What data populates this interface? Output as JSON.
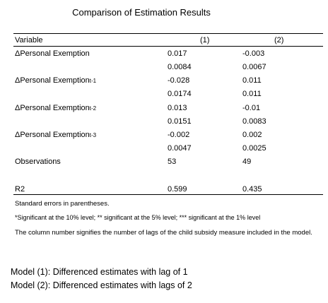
{
  "title": "Comparison of Estimation Results",
  "header": {
    "variable": "Variable",
    "col1": "(1)",
    "col2": "(2)"
  },
  "rows": [
    {
      "label": "ΔPersonal Exemption",
      "sub": "",
      "c1": "0.017",
      "c2": "-0.003"
    },
    {
      "label": "",
      "sub": "",
      "c1": "0.0084",
      "c2": "0.0067"
    },
    {
      "label": "ΔPersonal Exemption",
      "sub": "t-1",
      "c1": "-0.028",
      "c2": "0.011"
    },
    {
      "label": "",
      "sub": "",
      "c1": "0.0174",
      "c2": "0.011"
    },
    {
      "label": "ΔPersonal Exemption",
      "sub": "t-2",
      "c1": "0.013",
      "c2": "-0.01"
    },
    {
      "label": "",
      "sub": "",
      "c1": "0.0151",
      "c2": "0.0083"
    },
    {
      "label": "ΔPersonal Exemption",
      "sub": "t-3",
      "c1": "-0.002",
      "c2": "0.002"
    },
    {
      "label": "",
      "sub": "",
      "c1": "0.0047",
      "c2": "0.0025"
    },
    {
      "label": "Observations",
      "sub": "",
      "c1": "53",
      "c2": "49"
    },
    {
      "label": "R2",
      "sub": "",
      "c1": "0.599",
      "c2": "0.435"
    }
  ],
  "notes": {
    "standard_errors": "Standard errors in parentheses.",
    "significance": "*Significant at the 10% level; ** significant at the 5% level; *** significant at the 1% level",
    "column_number": "The column number signifies the number of lags of the child subsidy measure included in the model."
  },
  "models": {
    "model1": "Model (1): Differenced estimates with lag of 1",
    "model2": "Model (2): Differenced estimates with lags of 2"
  }
}
